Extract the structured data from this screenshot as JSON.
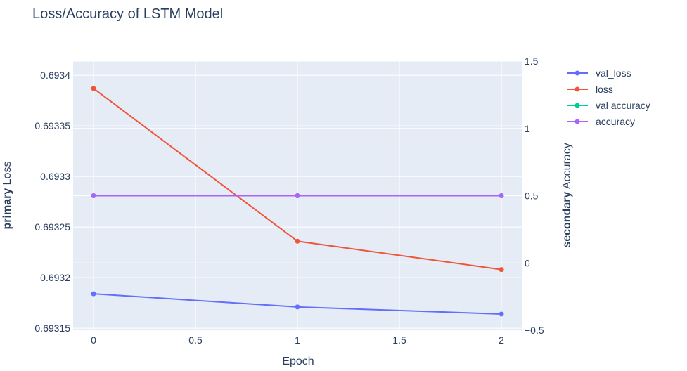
{
  "chart_data": {
    "type": "line",
    "title": "Loss/Accuracy of LSTM Model",
    "xlabel": "Epoch",
    "ylabel_primary": {
      "bold": "primary",
      "rest": " Loss"
    },
    "ylabel_secondary": {
      "bold": "secondary",
      "rest": " Accuracy"
    },
    "x": [
      0,
      1,
      2
    ],
    "xlim": [
      -0.1,
      2.1
    ],
    "xticks": [
      0,
      0.5,
      1,
      1.5,
      2
    ],
    "xtick_labels": [
      "0",
      "0.5",
      "1",
      "1.5",
      "2"
    ],
    "ylim_primary": [
      0.693148,
      0.693414
    ],
    "yticks_primary": [
      0.69315,
      0.6932,
      0.69325,
      0.6933,
      0.69335,
      0.6934
    ],
    "ytick_labels_primary": [
      "0.69315",
      "0.6932",
      "0.69325",
      "0.6933",
      "0.69335",
      "0.6934"
    ],
    "ylim_secondary": [
      -0.5,
      1.5
    ],
    "yticks_secondary": [
      -0.5,
      0,
      0.5,
      1,
      1.5
    ],
    "ytick_labels_secondary": [
      "−0.5",
      "0",
      "0.5",
      "1",
      "1.5"
    ],
    "grid": true,
    "legend_position": "top-right",
    "series": [
      {
        "name": "val_loss",
        "axis": "primary",
        "color": "#636efa",
        "values": [
          0.693184,
          0.693171,
          0.693164
        ]
      },
      {
        "name": "loss",
        "axis": "primary",
        "color": "#ef553b",
        "values": [
          0.693387,
          0.693236,
          0.693208
        ]
      },
      {
        "name": "val accuracy",
        "axis": "secondary",
        "color": "#00cc96",
        "values": [
          0.5,
          0.5,
          0.5
        ]
      },
      {
        "name": "accuracy",
        "axis": "secondary",
        "color": "#ab63fa",
        "values": [
          0.5,
          0.5,
          0.5
        ]
      }
    ]
  }
}
